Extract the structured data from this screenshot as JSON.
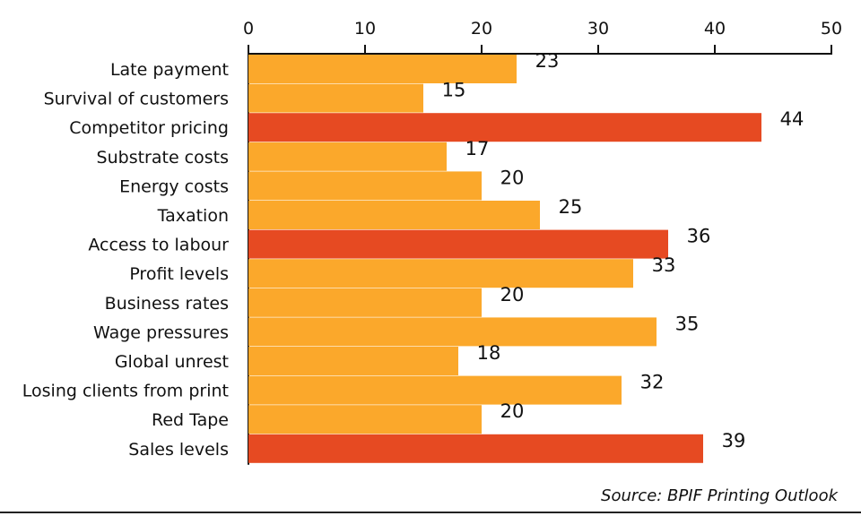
{
  "chart_data": {
    "type": "bar",
    "orientation": "horizontal",
    "categories": [
      "Late payment",
      "Survival of customers",
      "Competitor pricing",
      "Substrate costs",
      "Energy costs",
      "Taxation",
      "Access to labour",
      "Profit levels",
      "Business rates",
      "Wage pressures",
      "Global unrest",
      "Losing clients from print",
      "Red Tape",
      "Sales levels"
    ],
    "values": [
      23,
      15,
      44,
      17,
      20,
      25,
      36,
      33,
      20,
      35,
      18,
      32,
      20,
      39
    ],
    "highlighted": [
      false,
      false,
      true,
      false,
      false,
      false,
      true,
      false,
      false,
      false,
      false,
      false,
      false,
      true
    ],
    "colors": {
      "default": "#FBA82B",
      "highlight": "#E64A22"
    },
    "xlim": [
      0,
      50
    ],
    "xticks": [
      0,
      10,
      20,
      30,
      40,
      50
    ],
    "axis_position": "top",
    "grid": false,
    "source": "Source: BPIF Printing Outlook"
  }
}
